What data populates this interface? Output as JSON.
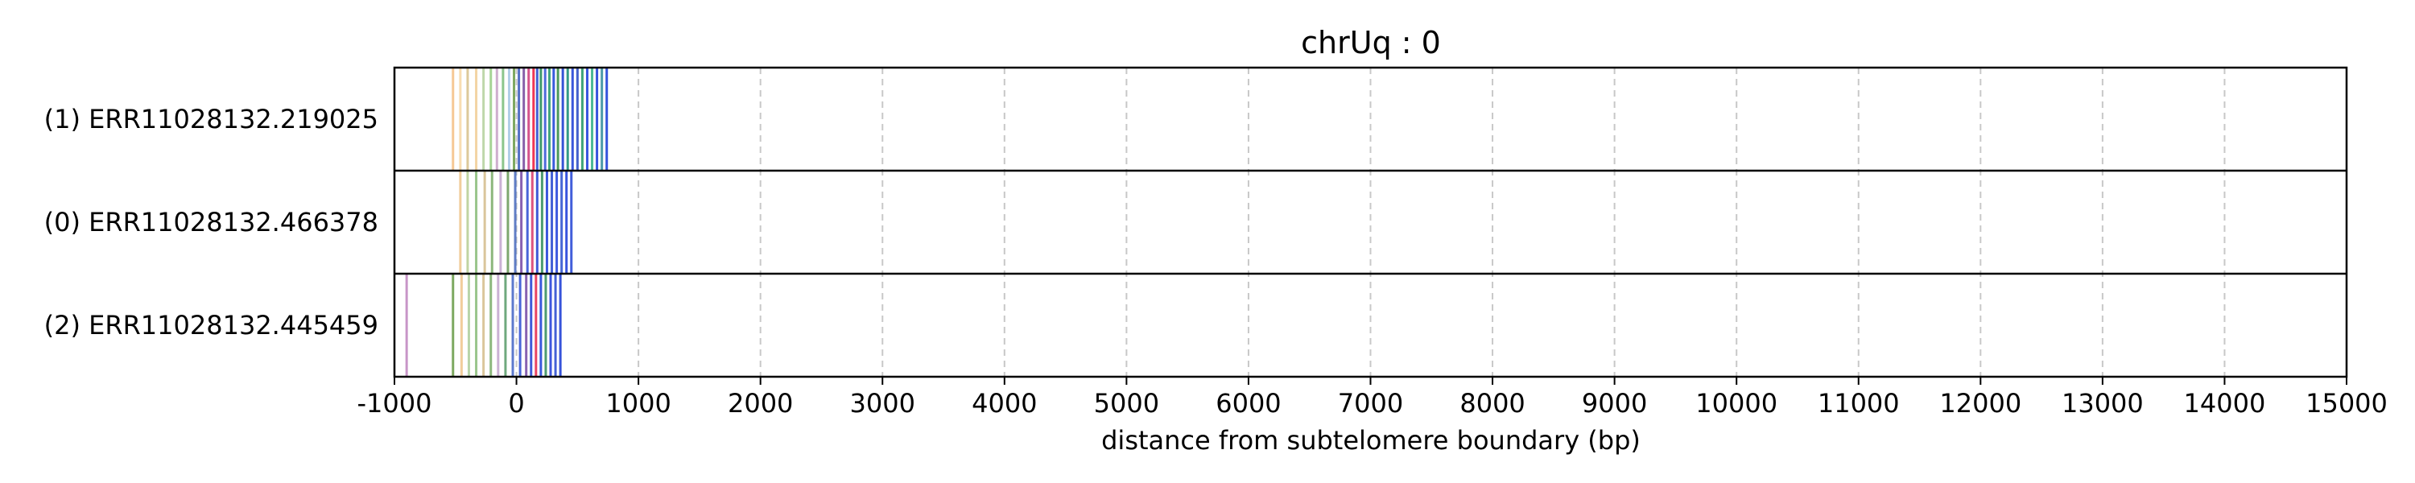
{
  "chart_data": {
    "type": "table",
    "title": "chrUq : 0",
    "xlabel": "distance from subtelomere boundary (bp)",
    "ylabel": "",
    "xlim": [
      -1000,
      15000
    ],
    "grid": true,
    "x_ticks": [
      -1000,
      0,
      1000,
      2000,
      3000,
      4000,
      5000,
      6000,
      7000,
      8000,
      9000,
      10000,
      11000,
      12000,
      13000,
      14000,
      15000
    ],
    "x_tick_labels": [
      "-1000",
      "0",
      "1000",
      "2000",
      "3000",
      "4000",
      "5000",
      "6000",
      "7000",
      "8000",
      "9000",
      "10000",
      "11000",
      "12000",
      "13000",
      "14000",
      "15000"
    ],
    "rows": [
      {
        "label": "(1) ERR11028132.219025",
        "read_end": 760,
        "marks": [
          {
            "x": -520,
            "color": "#f5c28a"
          },
          {
            "x": -460,
            "color": "#f7d9a8"
          },
          {
            "x": -400,
            "color": "#d9c38f"
          },
          {
            "x": -330,
            "color": "#f2cf9a"
          },
          {
            "x": -270,
            "color": "#b7d3a1"
          },
          {
            "x": -210,
            "color": "#9ccf8a"
          },
          {
            "x": -160,
            "color": "#c9a6c9"
          },
          {
            "x": -110,
            "color": "#7fbf7f"
          },
          {
            "x": -60,
            "color": "#a9c9e6"
          },
          {
            "x": -20,
            "color": "#6f9f4f"
          },
          {
            "x": 20,
            "color": "#4060c0"
          },
          {
            "x": 60,
            "color": "#7a4fa0"
          },
          {
            "x": 100,
            "color": "#d04080"
          },
          {
            "x": 140,
            "color": "#ee2040"
          },
          {
            "x": 170,
            "color": "#3050d0"
          },
          {
            "x": 200,
            "color": "#2a8f5a"
          },
          {
            "x": 235,
            "color": "#3c5ad8"
          },
          {
            "x": 270,
            "color": "#2f9c6f"
          },
          {
            "x": 305,
            "color": "#2448d8"
          },
          {
            "x": 340,
            "color": "#3a8f4a"
          },
          {
            "x": 380,
            "color": "#2040d0"
          },
          {
            "x": 420,
            "color": "#1e8f7a"
          },
          {
            "x": 460,
            "color": "#2646d6"
          },
          {
            "x": 500,
            "color": "#3050c8"
          },
          {
            "x": 540,
            "color": "#2a9a6a"
          },
          {
            "x": 580,
            "color": "#2244dc"
          },
          {
            "x": 620,
            "color": "#38b08a"
          },
          {
            "x": 660,
            "color": "#2040d8"
          },
          {
            "x": 700,
            "color": "#3a8fa0"
          },
          {
            "x": 740,
            "color": "#1f3fd8"
          }
        ]
      },
      {
        "label": "(0) ERR11028132.466378",
        "read_end": 480,
        "marks": [
          {
            "x": -460,
            "color": "#f0c890"
          },
          {
            "x": -400,
            "color": "#b9cf98"
          },
          {
            "x": -330,
            "color": "#8fbf7f"
          },
          {
            "x": -260,
            "color": "#d6c090"
          },
          {
            "x": -200,
            "color": "#7faf6f"
          },
          {
            "x": -130,
            "color": "#c4a9cf"
          },
          {
            "x": -70,
            "color": "#6f9f5f"
          },
          {
            "x": -10,
            "color": "#5070c0"
          },
          {
            "x": 40,
            "color": "#7a50a8"
          },
          {
            "x": 90,
            "color": "#3454d4"
          },
          {
            "x": 130,
            "color": "#d84070"
          },
          {
            "x": 170,
            "color": "#2a48d4"
          },
          {
            "x": 210,
            "color": "#3a9060"
          },
          {
            "x": 250,
            "color": "#2644d8"
          },
          {
            "x": 290,
            "color": "#3050d0"
          },
          {
            "x": 330,
            "color": "#2848dc"
          },
          {
            "x": 370,
            "color": "#3458d0"
          },
          {
            "x": 410,
            "color": "#2242da"
          },
          {
            "x": 450,
            "color": "#2c4cd6"
          }
        ]
      },
      {
        "label": "(2) ERR11028132.445459",
        "read_end": 390,
        "marks": [
          {
            "x": -900,
            "color": "#c28ac2"
          },
          {
            "x": -520,
            "color": "#6f9f4f"
          },
          {
            "x": -450,
            "color": "#f0c890"
          },
          {
            "x": -390,
            "color": "#b0cfa0"
          },
          {
            "x": -330,
            "color": "#8fbf7f"
          },
          {
            "x": -270,
            "color": "#d6c090"
          },
          {
            "x": -210,
            "color": "#7faf6f"
          },
          {
            "x": -150,
            "color": "#c4a9cf"
          },
          {
            "x": -90,
            "color": "#5f9f6f"
          },
          {
            "x": -30,
            "color": "#4a6ac8"
          },
          {
            "x": 30,
            "color": "#3454d4"
          },
          {
            "x": 80,
            "color": "#7a50a8"
          },
          {
            "x": 120,
            "color": "#2a48d4"
          },
          {
            "x": 160,
            "color": "#e83050"
          },
          {
            "x": 200,
            "color": "#2446d8"
          },
          {
            "x": 240,
            "color": "#3a9060"
          },
          {
            "x": 280,
            "color": "#2844da"
          },
          {
            "x": 320,
            "color": "#3050d0"
          },
          {
            "x": 360,
            "color": "#2040d6"
          }
        ]
      }
    ]
  }
}
